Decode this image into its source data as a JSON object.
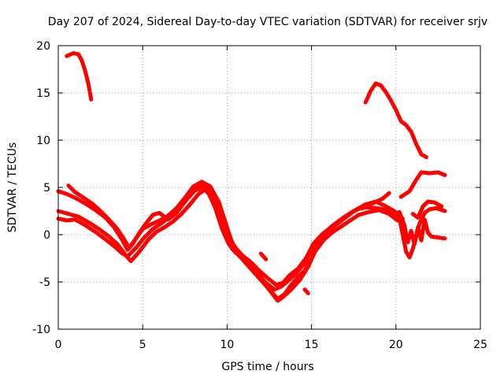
{
  "chart_data": {
    "type": "line",
    "title": "Day 207 of 2024, Sidereal Day-to-day VTEC variation (SDTVAR) for receiver srjv",
    "xlabel": "GPS time / hours",
    "ylabel": "SDTVAR / TECUs",
    "xlim": [
      0,
      25
    ],
    "ylim": [
      -10,
      20
    ],
    "xticks": [
      0,
      5,
      10,
      15,
      20,
      25
    ],
    "yticks": [
      -10,
      -5,
      0,
      5,
      10,
      15,
      20
    ],
    "grid": true,
    "series_color": "#ff0000",
    "series": [
      {
        "points": [
          [
            0.5,
            18.9
          ],
          [
            0.9,
            19.2
          ],
          [
            1.2,
            19.1
          ],
          [
            1.4,
            18.4
          ],
          [
            1.6,
            17.3
          ],
          [
            1.8,
            15.8
          ],
          [
            1.95,
            14.3
          ]
        ]
      },
      {
        "points": [
          [
            0,
            4.6
          ],
          [
            0.5,
            4.3
          ],
          [
            1,
            3.9
          ],
          [
            1.6,
            3.3
          ],
          [
            2.2,
            2.6
          ],
          [
            2.8,
            1.8
          ],
          [
            3.3,
            0.8
          ],
          [
            3.8,
            -0.6
          ],
          [
            4.1,
            -1.6
          ],
          [
            4.4,
            -1.0
          ],
          [
            4.8,
            0.2
          ],
          [
            5.2,
            1.2
          ],
          [
            5.6,
            2.1
          ],
          [
            6.0,
            2.3
          ],
          [
            6.5,
            1.6
          ],
          [
            7.0,
            2.3
          ],
          [
            7.5,
            3.5
          ],
          [
            8.0,
            4.6
          ],
          [
            8.5,
            5.3
          ],
          [
            9.0,
            4.8
          ],
          [
            9.4,
            3.6
          ],
          [
            9.8,
            1.8
          ],
          [
            10.2,
            -0.5
          ],
          [
            10.6,
            -1.8
          ],
          [
            11.0,
            -2.5
          ],
          [
            11.4,
            -3.2
          ],
          [
            11.8,
            -4.0
          ],
          [
            12.2,
            -5.0
          ],
          [
            12.6,
            -6.0
          ],
          [
            13.0,
            -6.8
          ],
          [
            13.4,
            -6.3
          ],
          [
            13.8,
            -5.3
          ],
          [
            14.2,
            -4.5
          ],
          [
            14.6,
            -3.8
          ],
          [
            15.0,
            -2.5
          ],
          [
            15.4,
            -0.8
          ],
          [
            15.8,
            0.2
          ],
          [
            16.2,
            0.9
          ],
          [
            16.8,
            1.7
          ],
          [
            17.4,
            2.4
          ],
          [
            18.0,
            2.9
          ],
          [
            18.6,
            3.3
          ],
          [
            19.2,
            3.8
          ],
          [
            19.6,
            4.4
          ]
        ]
      },
      {
        "points": [
          [
            0.6,
            5.2
          ],
          [
            1.0,
            4.5
          ],
          [
            1.5,
            3.9
          ],
          [
            2.0,
            3.3
          ],
          [
            2.5,
            2.5
          ],
          [
            3.0,
            1.6
          ],
          [
            3.5,
            0.6
          ],
          [
            3.9,
            -0.5
          ],
          [
            4.2,
            -1.4
          ],
          [
            4.6,
            -0.4
          ],
          [
            5.0,
            0.6
          ],
          [
            5.5,
            1.1
          ],
          [
            6.0,
            1.5
          ],
          [
            6.5,
            2.0
          ],
          [
            7.0,
            2.8
          ],
          [
            7.5,
            3.9
          ],
          [
            8.0,
            5.1
          ],
          [
            8.5,
            5.6
          ],
          [
            9.0,
            5.1
          ],
          [
            9.5,
            3.5
          ],
          [
            9.9,
            1.3
          ],
          [
            10.3,
            -0.9
          ],
          [
            10.8,
            -2.1
          ],
          [
            11.3,
            -3.0
          ],
          [
            11.8,
            -4.2
          ],
          [
            12.3,
            -5.1
          ],
          [
            12.8,
            -5.8
          ],
          [
            13.2,
            -5.5
          ],
          [
            13.6,
            -4.9
          ],
          [
            14.1,
            -4.1
          ],
          [
            14.6,
            -3.0
          ],
          [
            15.0,
            -1.5
          ],
          [
            15.5,
            -0.4
          ],
          [
            16.0,
            0.4
          ],
          [
            16.5,
            1.1
          ],
          [
            17.0,
            1.8
          ],
          [
            17.6,
            2.6
          ],
          [
            18.2,
            3.2
          ],
          [
            18.8,
            3.5
          ],
          [
            19.3,
            3.1
          ],
          [
            19.8,
            2.6
          ],
          [
            20.2,
            2.1
          ]
        ]
      },
      {
        "points": [
          [
            0,
            2.5
          ],
          [
            0.6,
            2.2
          ],
          [
            1.2,
            1.9
          ],
          [
            1.8,
            1.3
          ],
          [
            2.4,
            0.6
          ],
          [
            3.0,
            -0.2
          ],
          [
            3.5,
            -1.0
          ],
          [
            4.0,
            -2.2
          ],
          [
            4.3,
            -2.8
          ],
          [
            4.8,
            -1.8
          ],
          [
            5.3,
            -0.6
          ],
          [
            5.8,
            0.3
          ],
          [
            6.3,
            0.8
          ],
          [
            6.8,
            1.4
          ],
          [
            7.3,
            2.2
          ],
          [
            7.8,
            3.2
          ],
          [
            8.3,
            4.3
          ],
          [
            8.8,
            4.9
          ],
          [
            9.2,
            4.2
          ],
          [
            9.6,
            2.4
          ],
          [
            10.0,
            0.4
          ],
          [
            10.4,
            -1.2
          ],
          [
            10.9,
            -2.2
          ],
          [
            11.4,
            -2.9
          ],
          [
            11.9,
            -3.8
          ],
          [
            12.4,
            -4.6
          ],
          [
            12.9,
            -5.3
          ],
          [
            13.3,
            -5.1
          ],
          [
            13.7,
            -4.3
          ],
          [
            14.2,
            -3.6
          ],
          [
            14.7,
            -2.4
          ],
          [
            15.1,
            -1.0
          ],
          [
            15.6,
            0.0
          ],
          [
            16.1,
            0.7
          ],
          [
            16.6,
            1.3
          ],
          [
            17.1,
            2.0
          ],
          [
            17.7,
            2.7
          ],
          [
            18.3,
            2.9
          ],
          [
            18.9,
            2.8
          ],
          [
            19.5,
            2.6
          ],
          [
            20.0,
            2.1
          ],
          [
            20.4,
            1.7
          ]
        ]
      },
      {
        "points": [
          [
            0,
            1.7
          ],
          [
            0.5,
            1.5
          ],
          [
            1.0,
            1.6
          ],
          [
            1.6,
            1.0
          ],
          [
            2.2,
            0.3
          ],
          [
            2.8,
            -0.5
          ],
          [
            3.3,
            -1.2
          ],
          [
            3.8,
            -2.0
          ],
          [
            4.1,
            -2.3
          ],
          [
            4.6,
            -1.4
          ],
          [
            5.1,
            -0.3
          ],
          [
            5.6,
            0.6
          ],
          [
            6.1,
            1.2
          ],
          [
            6.6,
            1.9
          ],
          [
            7.1,
            2.7
          ],
          [
            7.6,
            3.7
          ],
          [
            8.1,
            4.7
          ],
          [
            8.6,
            5.0
          ],
          [
            9.1,
            3.9
          ],
          [
            9.5,
            2.0
          ],
          [
            9.9,
            -0.2
          ],
          [
            10.3,
            -1.5
          ],
          [
            10.8,
            -2.4
          ],
          [
            11.3,
            -3.4
          ],
          [
            11.8,
            -4.4
          ],
          [
            12.3,
            -5.4
          ],
          [
            12.7,
            -6.3
          ],
          [
            13.0,
            -7.0
          ],
          [
            13.3,
            -6.6
          ],
          [
            13.8,
            -5.8
          ],
          [
            14.3,
            -4.8
          ],
          [
            14.8,
            -3.4
          ],
          [
            15.2,
            -1.8
          ],
          [
            15.7,
            -0.6
          ],
          [
            16.2,
            0.2
          ],
          [
            16.7,
            0.8
          ],
          [
            17.2,
            1.4
          ],
          [
            17.8,
            2.1
          ],
          [
            18.4,
            2.4
          ],
          [
            19.0,
            2.6
          ],
          [
            19.6,
            2.2
          ],
          [
            20.1,
            1.5
          ]
        ]
      },
      {
        "points": [
          [
            8.5,
            5.0
          ],
          [
            8.9,
            4.4
          ],
          [
            9.3,
            2.8
          ],
          [
            9.7,
            0.6
          ],
          [
            10.1,
            -1.0
          ],
          [
            10.5,
            -1.9
          ]
        ]
      },
      {
        "points": [
          [
            12.0,
            -2.0
          ],
          [
            12.3,
            -2.6
          ]
        ]
      },
      {
        "points": [
          [
            14.6,
            -5.8
          ],
          [
            14.8,
            -6.2
          ]
        ]
      },
      {
        "points": [
          [
            18.2,
            14.0
          ],
          [
            18.5,
            15.2
          ],
          [
            18.8,
            16.0
          ],
          [
            19.1,
            15.8
          ],
          [
            19.4,
            15.1
          ],
          [
            19.7,
            14.2
          ],
          [
            20.0,
            13.2
          ],
          [
            20.3,
            12.0
          ],
          [
            20.6,
            11.6
          ],
          [
            20.9,
            10.9
          ],
          [
            21.2,
            9.6
          ],
          [
            21.5,
            8.5
          ],
          [
            21.8,
            8.2
          ]
        ]
      },
      {
        "points": [
          [
            20.3,
            4.0
          ],
          [
            20.8,
            4.6
          ],
          [
            21.2,
            5.8
          ],
          [
            21.5,
            6.6
          ],
          [
            22.0,
            6.5
          ],
          [
            22.5,
            6.6
          ],
          [
            22.9,
            6.3
          ]
        ]
      },
      {
        "points": [
          [
            20.2,
            1.8
          ],
          [
            20.4,
            0.0
          ],
          [
            20.6,
            -1.8
          ],
          [
            20.8,
            -2.4
          ],
          [
            21.0,
            -1.5
          ],
          [
            21.2,
            -0.2
          ],
          [
            21.4,
            1.2
          ],
          [
            21.7,
            2.3
          ],
          [
            22.0,
            2.7
          ],
          [
            22.4,
            2.8
          ],
          [
            22.9,
            2.5
          ]
        ]
      },
      {
        "points": [
          [
            20.2,
            2.4
          ],
          [
            20.5,
            1.0
          ],
          [
            20.7,
            -0.8
          ],
          [
            20.9,
            0.4
          ],
          [
            21.1,
            -1.0
          ],
          [
            21.3,
            0.8
          ],
          [
            21.5,
            -0.6
          ],
          [
            21.7,
            1.6
          ],
          [
            21.9,
            0.2
          ],
          [
            22.1,
            -0.2
          ],
          [
            22.5,
            -0.3
          ],
          [
            22.9,
            -0.4
          ]
        ]
      },
      {
        "points": [
          [
            21.0,
            2.2
          ],
          [
            21.3,
            1.8
          ],
          [
            21.6,
            3.0
          ],
          [
            21.9,
            3.5
          ],
          [
            22.3,
            3.4
          ],
          [
            22.7,
            3.0
          ]
        ]
      }
    ]
  }
}
